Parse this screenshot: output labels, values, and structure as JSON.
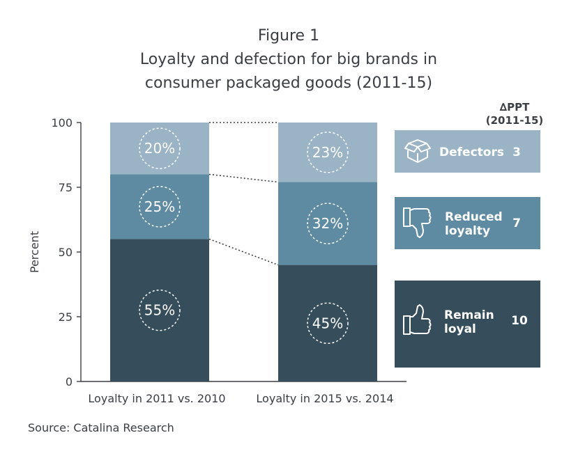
{
  "chart_data": {
    "type": "bar",
    "stacked": true,
    "title_lines": [
      "Figure 1",
      "Loyalty and defection for big brands in",
      "consumer packaged goods  (2011-15)"
    ],
    "ylabel": "Percent",
    "ylim": [
      0,
      100
    ],
    "yticks": [
      "0",
      "25",
      "50",
      "75",
      "100"
    ],
    "categories": [
      "Loyalty in 2011 vs. 2010",
      "Loyalty in 2015 vs. 2014"
    ],
    "series": [
      {
        "name": "Remain loyal",
        "values": [
          55,
          45
        ],
        "labels": [
          "55%",
          "45%"
        ],
        "color": "#364d5c"
      },
      {
        "name": "Reduced loyalty",
        "values": [
          25,
          32
        ],
        "labels": [
          "25%",
          "32%"
        ],
        "color": "#5e8aa2"
      },
      {
        "name": "Defectors",
        "values": [
          20,
          23
        ],
        "labels": [
          "20%",
          "23%"
        ],
        "color": "#9bb4c5"
      }
    ],
    "legend": {
      "placement": "right",
      "header_lines": [
        "∆PPT",
        "(2011-15)"
      ],
      "items": [
        {
          "lines": [
            "Defectors"
          ],
          "ppt": "3",
          "color": "#9bb4c5",
          "icon": "box-icon"
        },
        {
          "lines": [
            "Reduced",
            "loyalty"
          ],
          "ppt": "7",
          "color": "#5e8aa2",
          "icon": "thumbs-down-icon"
        },
        {
          "lines": [
            "Remain",
            "loyal"
          ],
          "ppt": "10",
          "color": "#364d5c",
          "icon": "thumbs-up-icon"
        }
      ]
    },
    "grid": false,
    "source": "Source: Catalina Research"
  }
}
